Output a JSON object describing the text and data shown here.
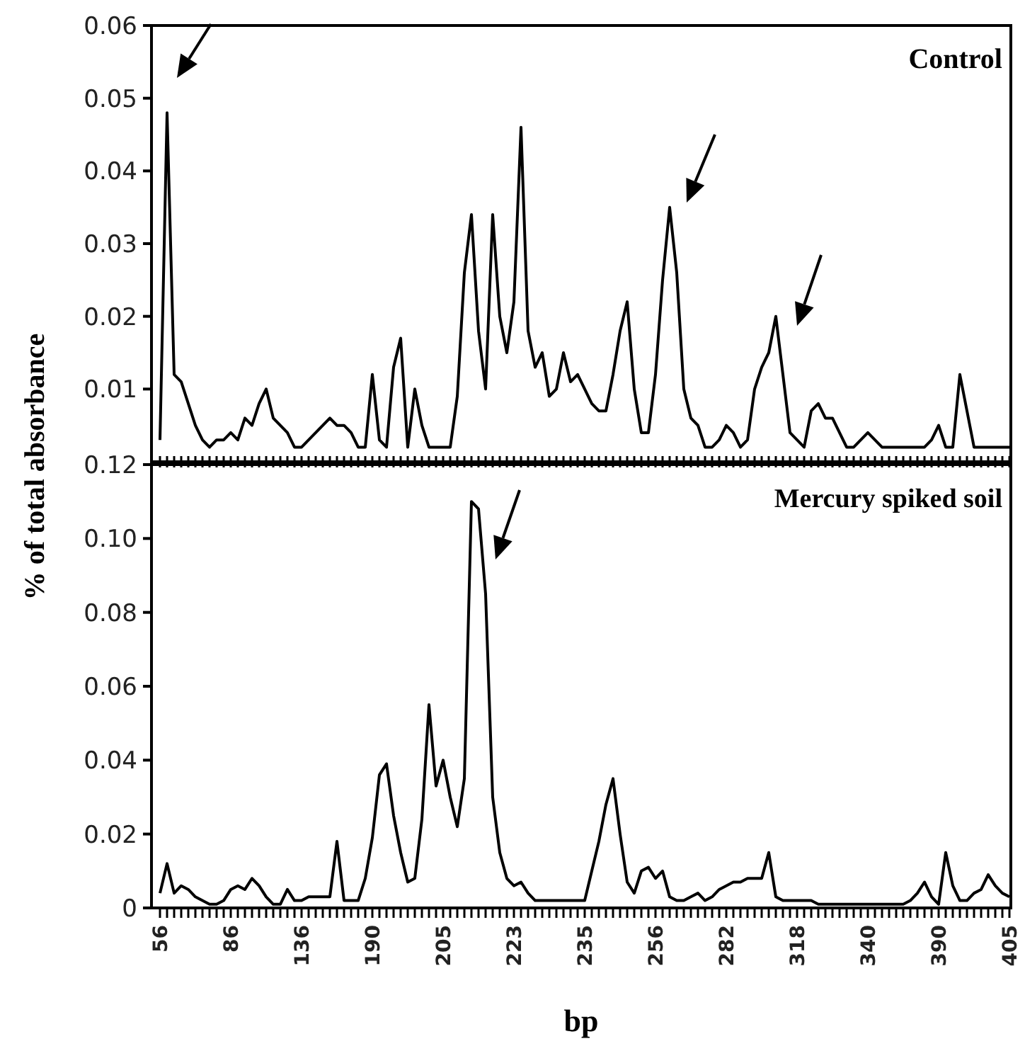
{
  "chart_data": [
    {
      "type": "line",
      "ylabel": "% of total absorbance",
      "annotations": [
        "Control"
      ],
      "tick_labels": "y",
      "categories": [
        "56",
        null,
        null,
        null,
        null,
        null,
        null,
        null,
        null,
        null,
        "86",
        null,
        null,
        null,
        null,
        null,
        null,
        null,
        null,
        null,
        "136",
        null,
        null,
        null,
        null,
        null,
        null,
        null,
        null,
        null,
        "190",
        null,
        null,
        null,
        null,
        null,
        null,
        null,
        null,
        null,
        "205",
        null,
        null,
        null,
        null,
        null,
        null,
        null,
        null,
        null,
        "223",
        null,
        null,
        null,
        null,
        null,
        null,
        null,
        null,
        null,
        "235",
        null,
        null,
        null,
        null,
        null,
        null,
        null,
        null,
        null,
        "256",
        null,
        null,
        null,
        null,
        null,
        null,
        null,
        null,
        null,
        "282",
        null,
        null,
        null,
        null,
        null,
        null,
        null,
        null,
        null,
        "318",
        null,
        null,
        null,
        null,
        null,
        null,
        null,
        null,
        null,
        "340",
        null,
        null,
        null,
        null,
        null,
        null,
        null,
        null,
        null,
        "390",
        null,
        null,
        null,
        null,
        null,
        null,
        null,
        null,
        null,
        "405"
      ],
      "series": [
        {
          "color": "#000000",
          "values": [
            0.003,
            0.048,
            0.012,
            0.011,
            0.008,
            0.005,
            0.003,
            0.002,
            0.003,
            0.003,
            0.004,
            0.003,
            0.006,
            0.005,
            0.008,
            0.01,
            0.006,
            0.005,
            0.004,
            0.002,
            0.002,
            0.003,
            0.004,
            0.005,
            0.006,
            0.005,
            0.005,
            0.004,
            0.002,
            0.002,
            0.012,
            0.003,
            0.002,
            0.013,
            0.017,
            0.002,
            0.01,
            0.005,
            0.002,
            0.002,
            0.002,
            0.002,
            0.009,
            0.026,
            0.034,
            0.018,
            0.01,
            0.034,
            0.02,
            0.015,
            0.022,
            0.046,
            0.018,
            0.013,
            0.015,
            0.009,
            0.01,
            0.015,
            0.011,
            0.012,
            0.01,
            0.008,
            0.007,
            0.007,
            0.012,
            0.018,
            0.022,
            0.01,
            0.004,
            0.004,
            0.012,
            0.025,
            0.035,
            0.026,
            0.01,
            0.006,
            0.005,
            0.002,
            0.002,
            0.003,
            0.005,
            0.004,
            0.002,
            0.003,
            0.01,
            0.013,
            0.015,
            0.02,
            0.012,
            0.004,
            0.003,
            0.002,
            0.007,
            0.008,
            0.006,
            0.006,
            0.004,
            0.002,
            0.002,
            0.003,
            0.004,
            0.003,
            0.002,
            0.002,
            0.002,
            0.002,
            0.002,
            0.002,
            0.002,
            0.003,
            0.005,
            0.002,
            0.002,
            0.012,
            0.007,
            0.002,
            0.002,
            0.002,
            0.002,
            0.002,
            0.002
          ]
        }
      ],
      "ylim": [
        0,
        0.06
      ],
      "yticks": [
        0.01,
        0.02,
        0.03,
        0.04,
        0.05,
        0.06
      ]
    },
    {
      "type": "line",
      "xlabel": "bp",
      "annotations": [
        "Mercury spiked soil"
      ],
      "categories": [
        "56",
        null,
        null,
        null,
        null,
        null,
        null,
        null,
        null,
        null,
        "86",
        null,
        null,
        null,
        null,
        null,
        null,
        null,
        null,
        null,
        "136",
        null,
        null,
        null,
        null,
        null,
        null,
        null,
        null,
        null,
        "190",
        null,
        null,
        null,
        null,
        null,
        null,
        null,
        null,
        null,
        "205",
        null,
        null,
        null,
        null,
        null,
        null,
        null,
        null,
        null,
        "223",
        null,
        null,
        null,
        null,
        null,
        null,
        null,
        null,
        null,
        "235",
        null,
        null,
        null,
        null,
        null,
        null,
        null,
        null,
        null,
        "256",
        null,
        null,
        null,
        null,
        null,
        null,
        null,
        null,
        null,
        "282",
        null,
        null,
        null,
        null,
        null,
        null,
        null,
        null,
        null,
        "318",
        null,
        null,
        null,
        null,
        null,
        null,
        null,
        null,
        null,
        "340",
        null,
        null,
        null,
        null,
        null,
        null,
        null,
        null,
        null,
        "390",
        null,
        null,
        null,
        null,
        null,
        null,
        null,
        null,
        null,
        "405"
      ],
      "series": [
        {
          "color": "#000000",
          "values": [
            0.004,
            0.012,
            0.004,
            0.006,
            0.005,
            0.003,
            0.002,
            0.001,
            0.001,
            0.002,
            0.005,
            0.006,
            0.005,
            0.008,
            0.006,
            0.003,
            0.001,
            0.001,
            0.005,
            0.002,
            0.002,
            0.003,
            0.003,
            0.003,
            0.003,
            0.018,
            0.002,
            0.002,
            0.002,
            0.008,
            0.019,
            0.036,
            0.039,
            0.025,
            0.015,
            0.007,
            0.008,
            0.024,
            0.055,
            0.033,
            0.04,
            0.03,
            0.022,
            0.035,
            0.11,
            0.108,
            0.085,
            0.03,
            0.015,
            0.008,
            0.006,
            0.007,
            0.004,
            0.002,
            0.002,
            0.002,
            0.002,
            0.002,
            0.002,
            0.002,
            0.002,
            0.01,
            0.018,
            0.028,
            0.035,
            0.02,
            0.007,
            0.004,
            0.01,
            0.011,
            0.008,
            0.01,
            0.003,
            0.002,
            0.002,
            0.003,
            0.004,
            0.002,
            0.003,
            0.005,
            0.006,
            0.007,
            0.007,
            0.008,
            0.008,
            0.008,
            0.015,
            0.003,
            0.002,
            0.002,
            0.002,
            0.002,
            0.002,
            0.001,
            0.001,
            0.001,
            0.001,
            0.001,
            0.001,
            0.001,
            0.001,
            0.001,
            0.001,
            0.001,
            0.001,
            0.001,
            0.002,
            0.004,
            0.007,
            0.003,
            0.001,
            0.015,
            0.006,
            0.002,
            0.002,
            0.004,
            0.005,
            0.009,
            0.006,
            0.004,
            0.003
          ]
        }
      ],
      "ylim": [
        0,
        0.12
      ],
      "yticks": [
        0,
        0.02,
        0.04,
        0.06,
        0.08,
        {
          "value": 0.1,
          "label": "0.10"
        },
        0.12
      ]
    }
  ]
}
